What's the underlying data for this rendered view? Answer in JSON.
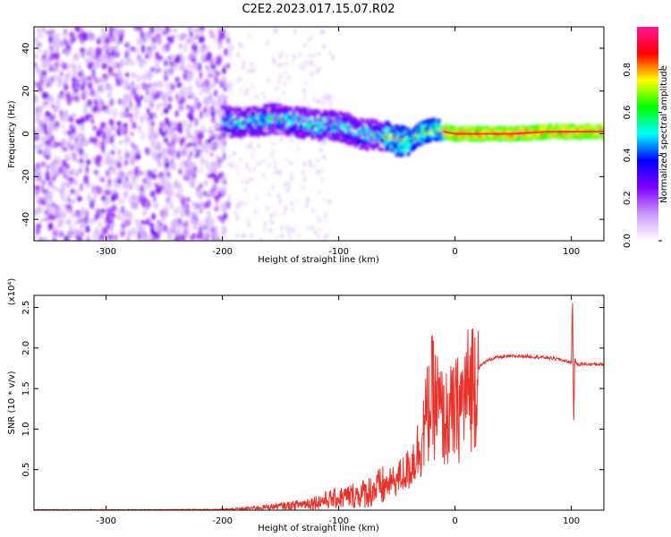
{
  "title": "C2E2.2023.017.15.07.R02",
  "chart_data": [
    {
      "type": "heatmap",
      "xlabel": "Height of straight line (km)",
      "ylabel": "Frequency (Hz)",
      "xlim": [
        -362,
        128
      ],
      "ylim": [
        -50,
        50
      ],
      "x_ticks": [
        -300,
        -200,
        -100,
        0,
        100
      ],
      "y_ticks": [
        -40,
        -20,
        0,
        20,
        40
      ],
      "colorbar": {
        "label": "Normalized spectral amplitude",
        "range": [
          0,
          1
        ],
        "ticks": [
          "0.0",
          "0.2",
          "0.4",
          "0.6",
          "0.8"
        ],
        "colors": [
          "#ffffff",
          "#cc99ff",
          "#7f00ff",
          "#0000ff",
          "#00ffff",
          "#00ff00",
          "#ffff00",
          "#ff0000",
          "#ff1493"
        ]
      },
      "ridge_frequency": {
        "x": [
          -200,
          -180,
          -160,
          -140,
          -120,
          -100,
          -80,
          -60,
          -50,
          -40,
          -30,
          -20,
          -10,
          0,
          20,
          50,
          80,
          100,
          128
        ],
        "y": [
          6,
          5,
          7,
          6,
          4,
          4,
          0,
          -1,
          -3,
          -4,
          0,
          2,
          1,
          0,
          0,
          0,
          1,
          1,
          1
        ]
      },
      "noise_extent_km": [
        -362,
        -195
      ],
      "grid": false
    },
    {
      "type": "line",
      "xlabel": "Height of straight line (km)",
      "ylabel": "SNR (10 * v/v)",
      "exponent_label": "(x10⁴)",
      "xlim": [
        -362,
        128
      ],
      "ylim": [
        0,
        2.65
      ],
      "x_ticks": [
        -300,
        -200,
        -100,
        0,
        100
      ],
      "y_ticks": [
        0.5,
        1.0,
        1.5,
        2.0,
        2.5
      ],
      "series": [
        {
          "color": "#e8312a",
          "x": [
            -362,
            -300,
            -250,
            -200,
            -180,
            -160,
            -140,
            -120,
            -100,
            -80,
            -60,
            -50,
            -40,
            -30,
            -25,
            -20,
            -15,
            -10,
            -5,
            0,
            5,
            10,
            15,
            20,
            25,
            30,
            35,
            40,
            50,
            60,
            70,
            80,
            90,
            95,
            100,
            101,
            102,
            103,
            104,
            105,
            110,
            120,
            128
          ],
          "y": [
            0.005,
            0.005,
            0.005,
            0.008,
            0.02,
            0.04,
            0.06,
            0.1,
            0.15,
            0.2,
            0.3,
            0.38,
            0.5,
            0.8,
            1.1,
            1.4,
            1.3,
            1.1,
            1.15,
            1.2,
            1.3,
            1.45,
            1.6,
            1.75,
            1.82,
            1.86,
            1.88,
            1.89,
            1.9,
            1.9,
            1.89,
            1.88,
            1.86,
            1.84,
            1.82,
            2.65,
            1.0,
            1.9,
            1.82,
            1.8,
            1.8,
            1.8,
            1.8
          ]
        }
      ],
      "grid": false
    }
  ]
}
